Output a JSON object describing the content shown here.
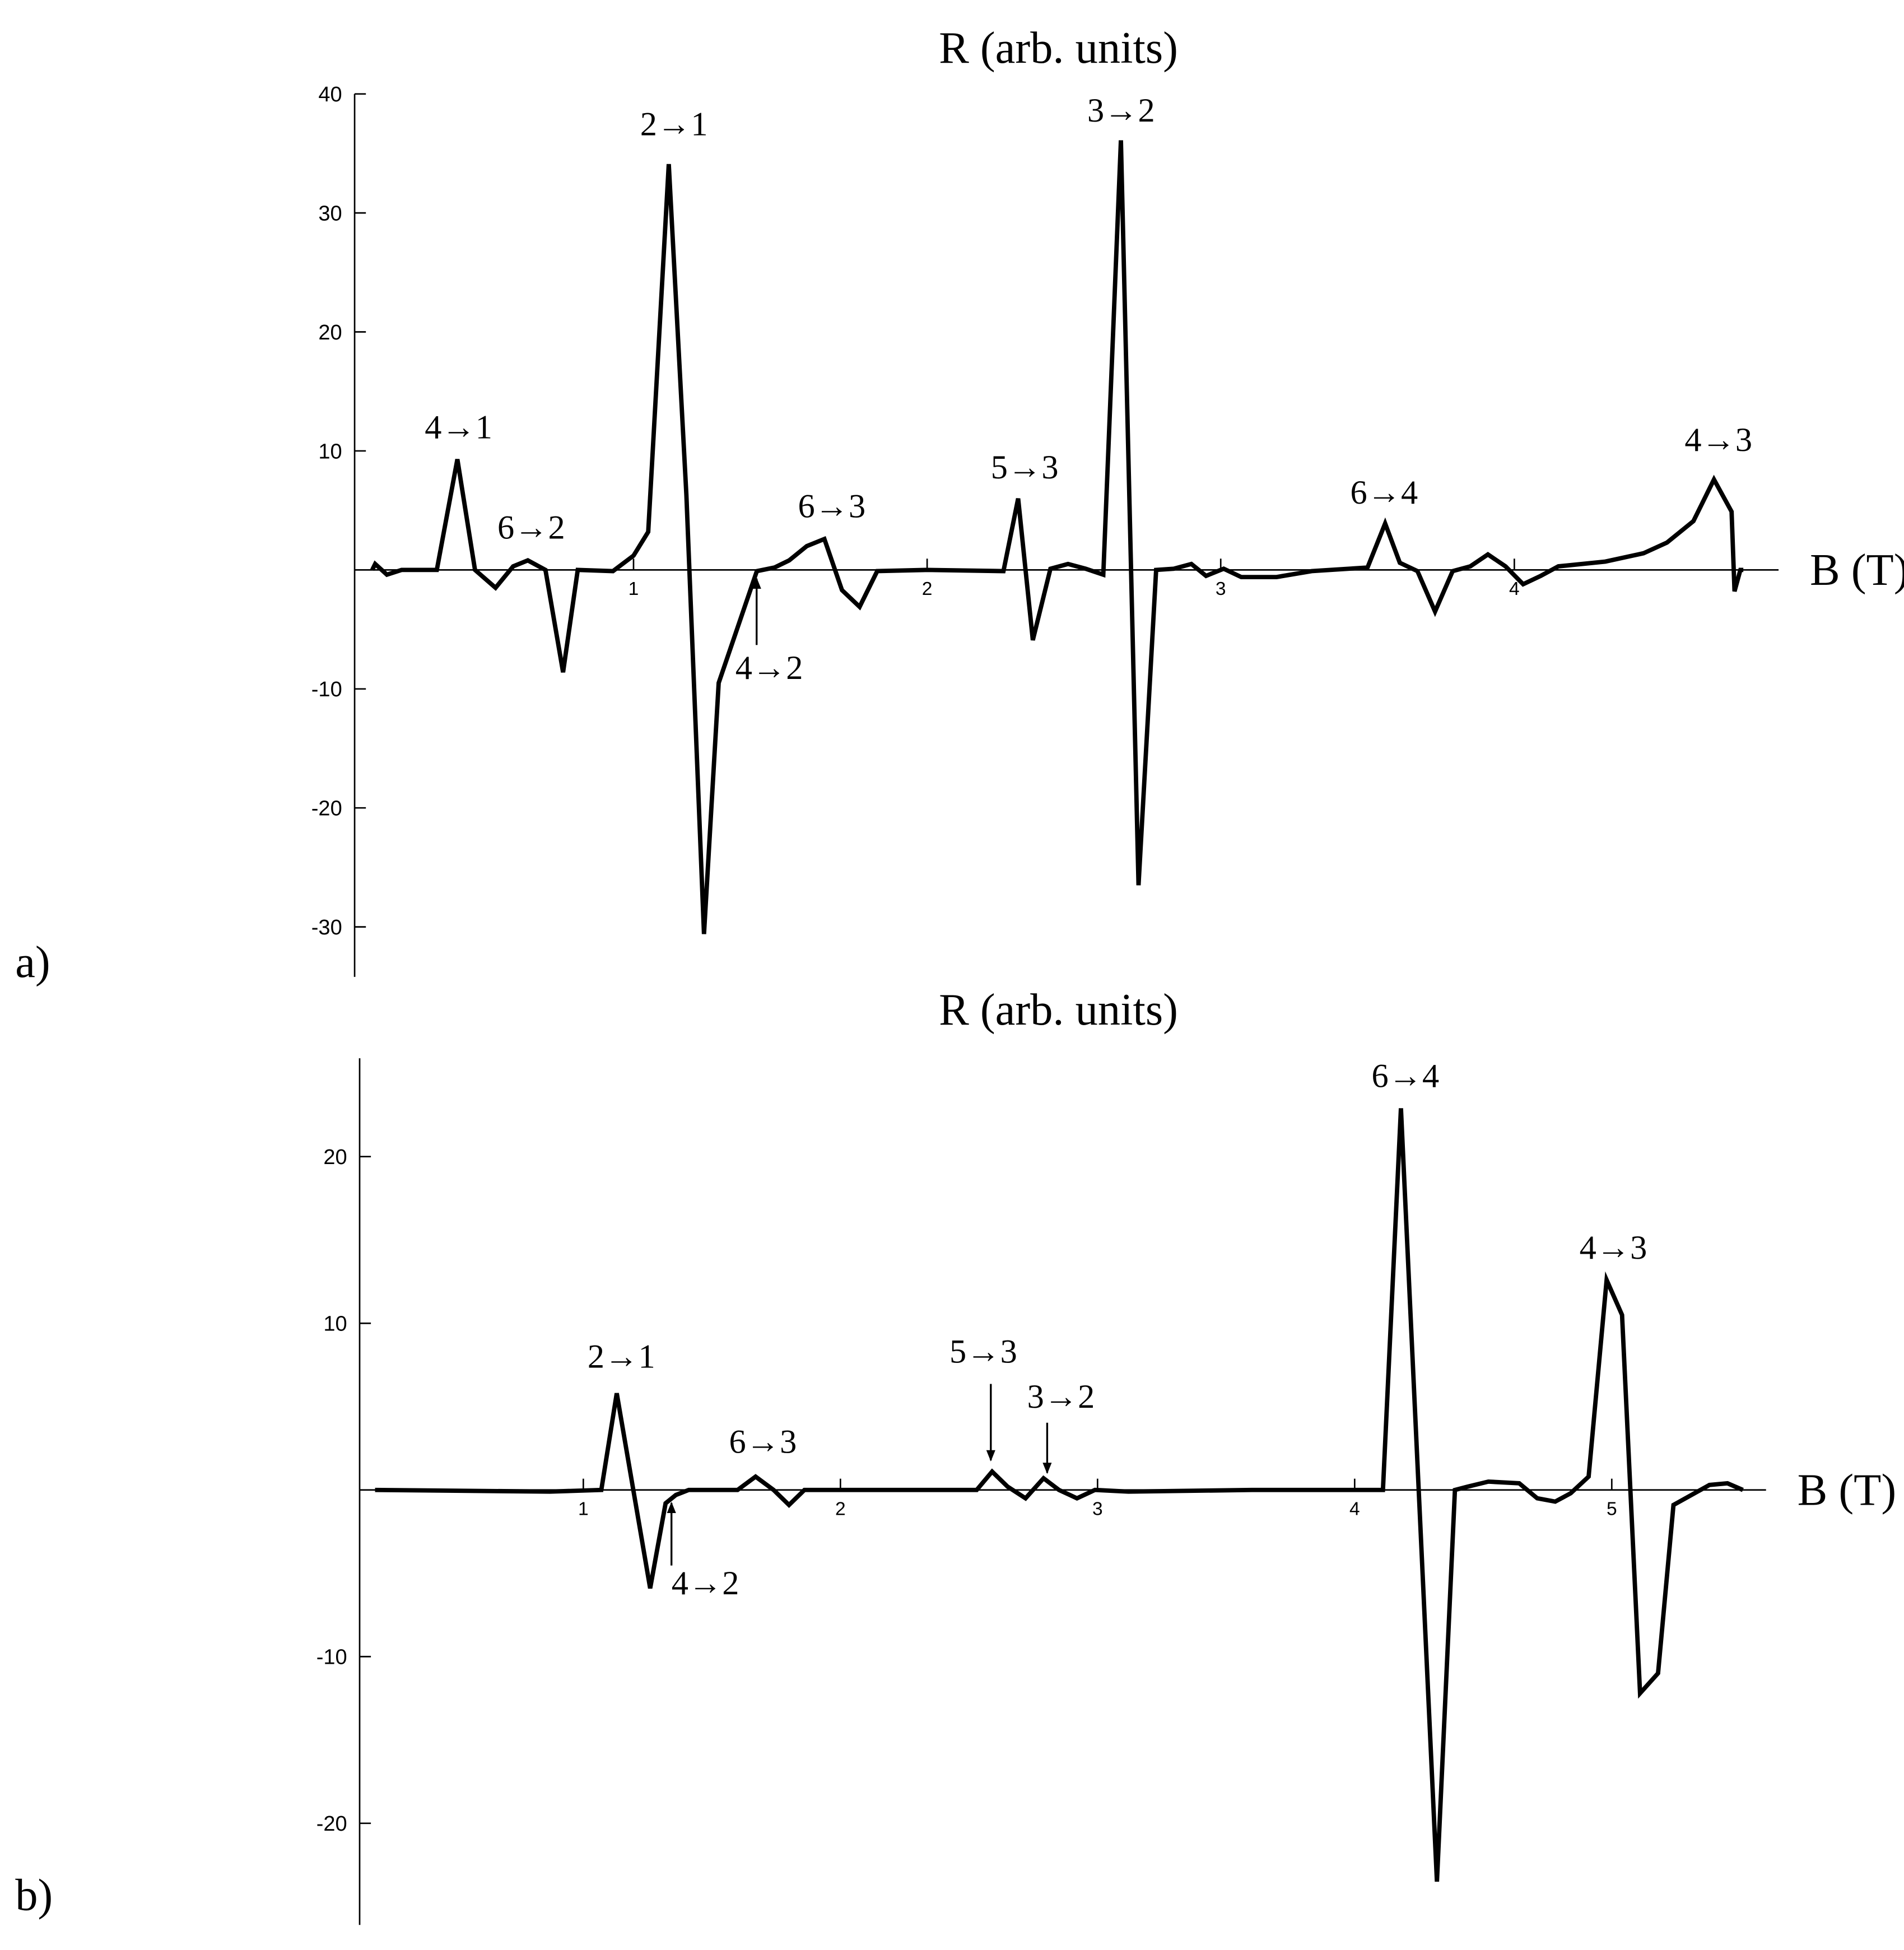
{
  "chart_data": [
    {
      "type": "line",
      "panel_label": "a)",
      "y_label": "R (arb. units)",
      "x_label": "B (T)",
      "xlim": [
        0.05,
        4.9
      ],
      "ylim": [
        -34.2,
        40
      ],
      "xticks": [
        1,
        2,
        3,
        4
      ],
      "yticks": [
        -30,
        -20,
        -10,
        10,
        20,
        30,
        40
      ],
      "color": "#000000",
      "annotations": [
        "4→1",
        "6→2",
        "2→1",
        "4→2",
        "6→3",
        "5→3",
        "3→2",
        "6→4",
        "4→3"
      ],
      "x": [
        0.11,
        0.12,
        0.16,
        0.21,
        0.33,
        0.4,
        0.46,
        0.53,
        0.59,
        0.64,
        0.7,
        0.76,
        0.81,
        0.93,
        1.0,
        1.05,
        1.12,
        1.18,
        1.24,
        1.29,
        1.42,
        1.48,
        1.53,
        1.59,
        1.65,
        1.71,
        1.77,
        1.83,
        2.0,
        2.26,
        2.31,
        2.36,
        2.42,
        2.48,
        2.54,
        2.6,
        2.66,
        2.72,
        2.78,
        2.84,
        2.9,
        2.95,
        3.01,
        3.07,
        3.19,
        3.31,
        3.5,
        3.56,
        3.61,
        3.67,
        3.73,
        3.79,
        3.85,
        3.91,
        3.97,
        4.03,
        4.09,
        4.15,
        4.31,
        4.44,
        4.52,
        4.61,
        4.68,
        4.74,
        4.75,
        4.77,
        4.78
      ],
      "values": [
        0,
        0.5,
        -0.4,
        0,
        0,
        9.3,
        0,
        -1.5,
        0.3,
        0.8,
        0,
        -8.6,
        0,
        -0.1,
        1.2,
        3.2,
        34.1,
        6.3,
        -30.6,
        -9.5,
        -0.1,
        0.2,
        0.8,
        2,
        2.6,
        -1.7,
        -3.1,
        -0.1,
        0,
        -0.1,
        6,
        -5.9,
        0.1,
        0.5,
        0.1,
        -0.4,
        36.1,
        -26.5,
        0,
        0.1,
        0.5,
        -0.5,
        0.1,
        -0.6,
        -0.6,
        -0.1,
        0.2,
        3.9,
        0.6,
        -0.1,
        -3.5,
        -0.1,
        0.3,
        1.3,
        0.3,
        -1.2,
        -0.5,
        0.3,
        0.7,
        1.4,
        2.3,
        4.1,
        7.6,
        4.9,
        -1.8,
        0,
        0
      ]
    },
    {
      "type": "line",
      "panel_label": "b)",
      "y_label": "R (arb. units)",
      "x_label": "B (T)",
      "xlim": [
        0.13,
        5.6
      ],
      "ylim": [
        -26.1,
        25.9
      ],
      "xticks": [
        1,
        2,
        3,
        4,
        5
      ],
      "yticks": [
        -20,
        -10,
        10,
        20
      ],
      "color": "#000000",
      "annotations": [
        "2→1",
        "4→2",
        "6→3",
        "5→3",
        "3→2",
        "6→4",
        "4→3"
      ],
      "x": [
        0.19,
        0.87,
        1.07,
        1.13,
        1.26,
        1.32,
        1.36,
        1.41,
        1.6,
        1.67,
        1.74,
        1.8,
        1.86,
        2.04,
        2.53,
        2.59,
        2.65,
        2.72,
        2.79,
        2.85,
        2.92,
        2.99,
        3.12,
        3.6,
        4.11,
        4.18,
        4.32,
        4.39,
        4.44,
        4.52,
        4.64,
        4.71,
        4.78,
        4.84,
        4.91,
        4.98,
        5.04,
        5.11,
        5.18,
        5.24,
        5.31,
        5.38,
        5.45,
        5.51
      ],
      "values": [
        0,
        -0.1,
        0,
        5.8,
        -5.9,
        -0.8,
        -0.3,
        0,
        0,
        0.8,
        0,
        -0.9,
        0,
        0,
        0,
        1.1,
        0.2,
        -0.5,
        0.7,
        0,
        -0.5,
        0,
        -0.1,
        0,
        0,
        22.9,
        -23.5,
        0,
        0.2,
        0.5,
        0.4,
        -0.5,
        -0.7,
        -0.2,
        0.8,
        12.6,
        10.5,
        -12.2,
        -11,
        -0.9,
        -0.3,
        0.3,
        0.4,
        0
      ]
    }
  ]
}
